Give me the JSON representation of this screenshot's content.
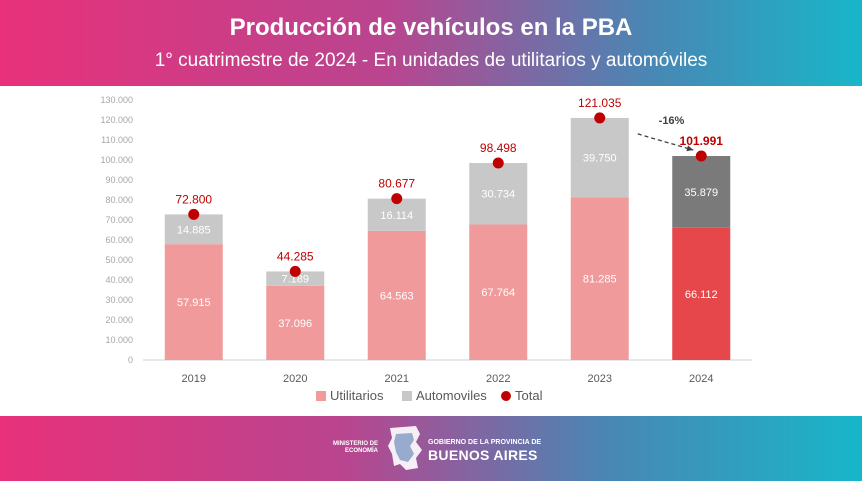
{
  "header": {
    "title": "Producción de vehículos en la PBA",
    "subtitle": "1° cuatrimestre de 2024 - En unidades de utilitarios y automóviles"
  },
  "chart_data": {
    "type": "bar",
    "stacked": true,
    "categories": [
      "2019",
      "2020",
      "2021",
      "2022",
      "2023",
      "2024"
    ],
    "series": [
      {
        "name": "Utilitarios",
        "values": [
          57915,
          37096,
          64563,
          67764,
          81285,
          66112
        ],
        "labels": [
          "57.915",
          "37.096",
          "64.563",
          "67.764",
          "81.285",
          "66.112"
        ],
        "color": "#f09a9b",
        "highlight_color": "#e5474b"
      },
      {
        "name": "Automoviles",
        "values": [
          14885,
          7189,
          16114,
          30734,
          39750,
          35879
        ],
        "labels": [
          "14.885",
          "7.189",
          "16.114",
          "30.734",
          "39.750",
          "35.879"
        ],
        "color": "#c8c8c8",
        "highlight_color": "#7a7a7a"
      },
      {
        "name": "Total",
        "values": [
          72800,
          44285,
          80677,
          98498,
          121035,
          101991
        ],
        "labels": [
          "72.800",
          "44.285",
          "80.677",
          "98.498",
          "121.035",
          "101.991"
        ],
        "color": "#c00000"
      }
    ],
    "ylim": [
      0,
      130000
    ],
    "yticks": [
      "0",
      "10.000",
      "20.000",
      "30.000",
      "40.000",
      "50.000",
      "60.000",
      "70.000",
      "80.000",
      "90.000",
      "100.000",
      "110.000",
      "120.000",
      "130.000"
    ],
    "annotation": "-16%",
    "legend_position": "bottom",
    "grid": false
  },
  "footer": {
    "ministry": "MINISTERIO DE ECONOMÍA",
    "gobierno": "GOBIERNO DE LA PROVINCIA DE",
    "provincia": "BUENOS AIRES"
  }
}
